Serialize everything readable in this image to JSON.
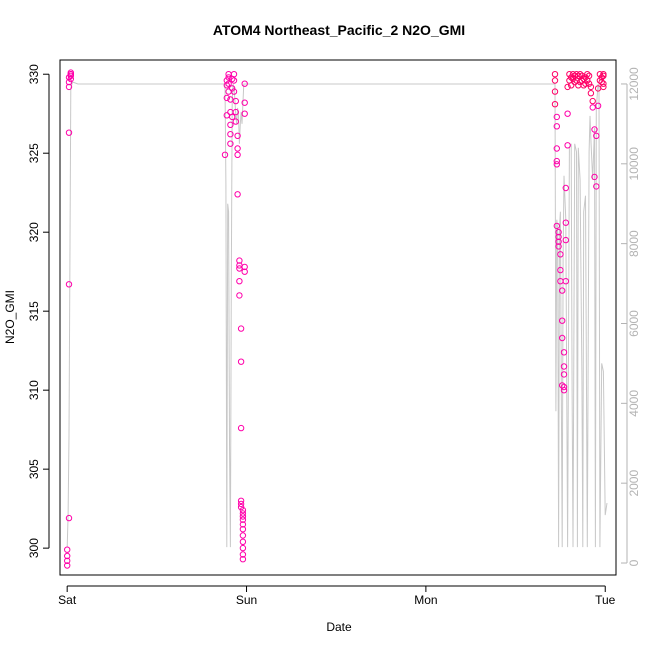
{
  "chart_data": {
    "type": "scatter",
    "title": "ATOM4 Northeast_Pacific_2 N2O_GMI",
    "xlabel": "Date",
    "ylabel": "N2O_GMI",
    "x_ticks": [
      "Sat",
      "Sun",
      "Mon",
      "Tue"
    ],
    "x_tick_values": [
      0,
      1,
      2,
      3
    ],
    "xlim": [
      -0.04,
      3.06
    ],
    "ylim": [
      298.3,
      330.9
    ],
    "y_ticks": [
      300,
      305,
      310,
      315,
      320,
      325,
      330
    ],
    "y2lim": [
      -300,
      12600
    ],
    "y2_ticks": [
      0,
      2000,
      4000,
      6000,
      8000,
      10000,
      12000
    ],
    "grid": false,
    "colors": {
      "points": "#ff00aa",
      "points_dense": "#ff0066",
      "altitude": "#c8c8c8",
      "axis": "#000000",
      "axis2": "#b3b3b3"
    },
    "series": [
      {
        "marker": "circle",
        "x": [
          0.0,
          0.0,
          0.0,
          0.0,
          0.01,
          0.01,
          0.01,
          0.01,
          0.01,
          0.01,
          0.02,
          0.02,
          0.02,
          0.02,
          0.02,
          0.88,
          0.89,
          0.89,
          0.89,
          0.89,
          0.9,
          0.9,
          0.9,
          0.9,
          0.91,
          0.91,
          0.91,
          0.91,
          0.91,
          0.92,
          0.92,
          0.92,
          0.93,
          0.93,
          0.93,
          0.94,
          0.94,
          0.94,
          0.95,
          0.95,
          0.95,
          0.95,
          0.96,
          0.96,
          0.96,
          0.96,
          0.96,
          0.97,
          0.97,
          0.97,
          0.97,
          0.97,
          0.97,
          0.98,
          0.98,
          0.98,
          0.98,
          0.98,
          0.98,
          0.98,
          0.98,
          0.98,
          0.98,
          0.98,
          0.99,
          0.99,
          0.99,
          0.99,
          0.99,
          2.72,
          2.72,
          2.72,
          2.72,
          2.73,
          2.73,
          2.73,
          2.73,
          2.73,
          2.73,
          2.74,
          2.74,
          2.74,
          2.74,
          2.75,
          2.75,
          2.75,
          2.76,
          2.76,
          2.76,
          2.76,
          2.77,
          2.77,
          2.77,
          2.77,
          2.77,
          2.78,
          2.78,
          2.78,
          2.78,
          2.79,
          2.79,
          2.79,
          2.8,
          2.8,
          2.81,
          2.81,
          2.82,
          2.82,
          2.83,
          2.83,
          2.84,
          2.84,
          2.85,
          2.85,
          2.86,
          2.86,
          2.87,
          2.87,
          2.88,
          2.88,
          2.89,
          2.89,
          2.9,
          2.9,
          2.91,
          2.91,
          2.92,
          2.92,
          2.93,
          2.93,
          2.94,
          2.94,
          2.95,
          2.95,
          2.96,
          2.96,
          2.97,
          2.97,
          2.98,
          2.98,
          2.99,
          2.99,
          2.99,
          2.99
        ],
        "y": [
          298.9,
          299.2,
          299.5,
          299.9,
          301.9,
          316.7,
          326.3,
          329.2,
          329.5,
          329.8,
          330.0,
          330.1,
          330.0,
          329.9,
          329.7,
          324.9,
          327.4,
          328.5,
          329.3,
          329.6,
          330.0,
          329.8,
          329.4,
          328.9,
          328.4,
          327.6,
          326.8,
          326.2,
          325.6,
          327.3,
          329.1,
          329.7,
          330.0,
          329.6,
          328.9,
          328.3,
          327.6,
          327.0,
          326.1,
          325.3,
          324.9,
          322.4,
          318.2,
          317.9,
          317.7,
          316.9,
          316.0,
          313.9,
          311.8,
          307.6,
          303.0,
          302.8,
          302.6,
          302.4,
          302.2,
          302.0,
          301.8,
          301.5,
          301.2,
          300.8,
          300.4,
          300.0,
          299.6,
          299.3,
          317.5,
          317.8,
          327.5,
          328.2,
          329.4,
          330.0,
          329.6,
          328.9,
          328.1,
          327.3,
          326.7,
          325.3,
          324.5,
          324.3,
          320.4,
          320.0,
          319.7,
          319.4,
          319.1,
          318.6,
          317.6,
          316.9,
          314.4,
          316.3,
          313.3,
          310.3,
          310.2,
          310.0,
          311.0,
          311.5,
          312.4,
          316.9,
          319.5,
          320.6,
          322.8,
          325.5,
          327.5,
          329.2,
          329.6,
          330.0,
          329.3,
          329.8,
          330.0,
          329.7,
          329.5,
          329.9,
          330.0,
          329.6,
          329.3,
          329.9,
          330.0,
          329.5,
          329.6,
          329.9,
          329.3,
          329.7,
          329.4,
          329.8,
          330.0,
          329.6,
          329.4,
          329.9,
          329.2,
          328.8,
          328.3,
          327.9,
          326.5,
          323.5,
          322.9,
          326.1,
          328.0,
          329.1,
          329.6,
          330.0,
          329.8,
          329.5,
          329.2,
          329.9,
          330.0,
          329.4
        ]
      },
      {
        "type": "line",
        "x": [
          0.0,
          0.005,
          0.01,
          0.015,
          0.02,
          0.03,
          0.06,
          0.12,
          0.2,
          0.4,
          0.6,
          0.8,
          0.88,
          0.885,
          0.89,
          0.895,
          0.9,
          0.905,
          0.91,
          0.915,
          0.92,
          0.925,
          0.93,
          0.935,
          0.94,
          0.945,
          0.95,
          0.955,
          0.96,
          0.965,
          0.97,
          0.975,
          0.98,
          0.985,
          0.99,
          0.995,
          1.0,
          1.2,
          1.5,
          1.8,
          2.0,
          2.2,
          2.5,
          2.7,
          2.71,
          2.72,
          2.725,
          2.73,
          2.735,
          2.74,
          2.745,
          2.75,
          2.755,
          2.76,
          2.765,
          2.77,
          2.78,
          2.79,
          2.8,
          2.81,
          2.815,
          2.82,
          2.83,
          2.84,
          2.845,
          2.85,
          2.86,
          2.87,
          2.875,
          2.88,
          2.89,
          2.9,
          2.91,
          2.915,
          2.92,
          2.93,
          2.94,
          2.945,
          2.95,
          2.96,
          2.965,
          2.97,
          2.98,
          2.99,
          3.0,
          3.01
        ],
        "y": [
          400,
          1200,
          3200,
          7500,
          11900,
          12050,
          12000,
          12000,
          12000,
          12000,
          12000,
          12000,
          12000,
          9500,
          400,
          9000,
          8800,
          3000,
          400,
          7000,
          11600,
          12000,
          11900,
          11600,
          11200,
          11000,
          11400,
          11200,
          10500,
          11000,
          11300,
          11000,
          11500,
          12000,
          12000,
          12000,
          12000,
          12000,
          12000,
          12000,
          12000,
          12000,
          12000,
          12000,
          12000,
          12000,
          3800,
          8600,
          8300,
          400,
          8400,
          8800,
          4300,
          400,
          7600,
          9700,
          8600,
          400,
          10400,
          10500,
          4300,
          400,
          10500,
          10300,
          400,
          10400,
          9600,
          4700,
          400,
          8800,
          9200,
          400,
          10300,
          11200,
          10600,
          9600,
          10900,
          400,
          11400,
          12000,
          11900,
          400,
          5000,
          4800,
          1200,
          1500
        ],
        "y_axis": "right"
      }
    ]
  }
}
